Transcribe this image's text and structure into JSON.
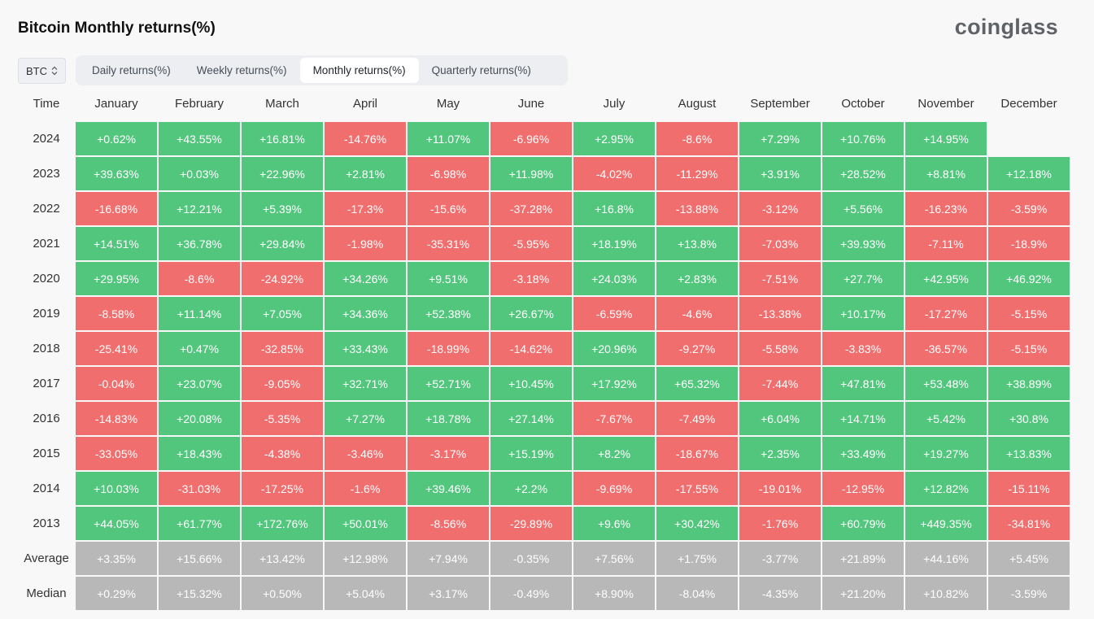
{
  "header": {
    "title": "Bitcoin Monthly returns(%)",
    "brand": "coinglass"
  },
  "coin_select": {
    "value": "BTC"
  },
  "tabs": [
    {
      "label": "Daily returns(%)",
      "active": false
    },
    {
      "label": "Weekly returns(%)",
      "active": false
    },
    {
      "label": "Monthly returns(%)",
      "active": true
    },
    {
      "label": "Quarterly returns(%)",
      "active": false
    }
  ],
  "colors": {
    "positive": "#53c67e",
    "negative": "#f16e6e",
    "summary": "#b8b8b8"
  },
  "table": {
    "time_header": "Time",
    "months": [
      "January",
      "February",
      "March",
      "April",
      "May",
      "June",
      "July",
      "August",
      "September",
      "October",
      "November",
      "December"
    ],
    "rows": [
      {
        "label": "2024",
        "values": [
          "+0.62%",
          "+43.55%",
          "+16.81%",
          "-14.76%",
          "+11.07%",
          "-6.96%",
          "+2.95%",
          "-8.6%",
          "+7.29%",
          "+10.76%",
          "+14.95%",
          ""
        ]
      },
      {
        "label": "2023",
        "values": [
          "+39.63%",
          "+0.03%",
          "+22.96%",
          "+2.81%",
          "-6.98%",
          "+11.98%",
          "-4.02%",
          "-11.29%",
          "+3.91%",
          "+28.52%",
          "+8.81%",
          "+12.18%"
        ]
      },
      {
        "label": "2022",
        "values": [
          "-16.68%",
          "+12.21%",
          "+5.39%",
          "-17.3%",
          "-15.6%",
          "-37.28%",
          "+16.8%",
          "-13.88%",
          "-3.12%",
          "+5.56%",
          "-16.23%",
          "-3.59%"
        ]
      },
      {
        "label": "2021",
        "values": [
          "+14.51%",
          "+36.78%",
          "+29.84%",
          "-1.98%",
          "-35.31%",
          "-5.95%",
          "+18.19%",
          "+13.8%",
          "-7.03%",
          "+39.93%",
          "-7.11%",
          "-18.9%"
        ]
      },
      {
        "label": "2020",
        "values": [
          "+29.95%",
          "-8.6%",
          "-24.92%",
          "+34.26%",
          "+9.51%",
          "-3.18%",
          "+24.03%",
          "+2.83%",
          "-7.51%",
          "+27.7%",
          "+42.95%",
          "+46.92%"
        ]
      },
      {
        "label": "2019",
        "values": [
          "-8.58%",
          "+11.14%",
          "+7.05%",
          "+34.36%",
          "+52.38%",
          "+26.67%",
          "-6.59%",
          "-4.6%",
          "-13.38%",
          "+10.17%",
          "-17.27%",
          "-5.15%"
        ]
      },
      {
        "label": "2018",
        "values": [
          "-25.41%",
          "+0.47%",
          "-32.85%",
          "+33.43%",
          "-18.99%",
          "-14.62%",
          "+20.96%",
          "-9.27%",
          "-5.58%",
          "-3.83%",
          "-36.57%",
          "-5.15%"
        ]
      },
      {
        "label": "2017",
        "values": [
          "-0.04%",
          "+23.07%",
          "-9.05%",
          "+32.71%",
          "+52.71%",
          "+10.45%",
          "+17.92%",
          "+65.32%",
          "-7.44%",
          "+47.81%",
          "+53.48%",
          "+38.89%"
        ]
      },
      {
        "label": "2016",
        "values": [
          "-14.83%",
          "+20.08%",
          "-5.35%",
          "+7.27%",
          "+18.78%",
          "+27.14%",
          "-7.67%",
          "-7.49%",
          "+6.04%",
          "+14.71%",
          "+5.42%",
          "+30.8%"
        ]
      },
      {
        "label": "2015",
        "values": [
          "-33.05%",
          "+18.43%",
          "-4.38%",
          "-3.46%",
          "-3.17%",
          "+15.19%",
          "+8.2%",
          "-18.67%",
          "+2.35%",
          "+33.49%",
          "+19.27%",
          "+13.83%"
        ]
      },
      {
        "label": "2014",
        "values": [
          "+10.03%",
          "-31.03%",
          "-17.25%",
          "-1.6%",
          "+39.46%",
          "+2.2%",
          "-9.69%",
          "-17.55%",
          "-19.01%",
          "-12.95%",
          "+12.82%",
          "-15.11%"
        ]
      },
      {
        "label": "2013",
        "values": [
          "+44.05%",
          "+61.77%",
          "+172.76%",
          "+50.01%",
          "-8.56%",
          "-29.89%",
          "+9.6%",
          "+30.42%",
          "-1.76%",
          "+60.79%",
          "+449.35%",
          "-34.81%"
        ]
      }
    ],
    "summary_rows": [
      {
        "label": "Average",
        "values": [
          "+3.35%",
          "+15.66%",
          "+13.42%",
          "+12.98%",
          "+7.94%",
          "-0.35%",
          "+7.56%",
          "+1.75%",
          "-3.77%",
          "+21.89%",
          "+44.16%",
          "+5.45%"
        ]
      },
      {
        "label": "Median",
        "values": [
          "+0.29%",
          "+15.32%",
          "+0.50%",
          "+5.04%",
          "+3.17%",
          "-0.49%",
          "+8.90%",
          "-8.04%",
          "-4.35%",
          "+21.20%",
          "+10.82%",
          "-3.59%"
        ]
      }
    ]
  }
}
